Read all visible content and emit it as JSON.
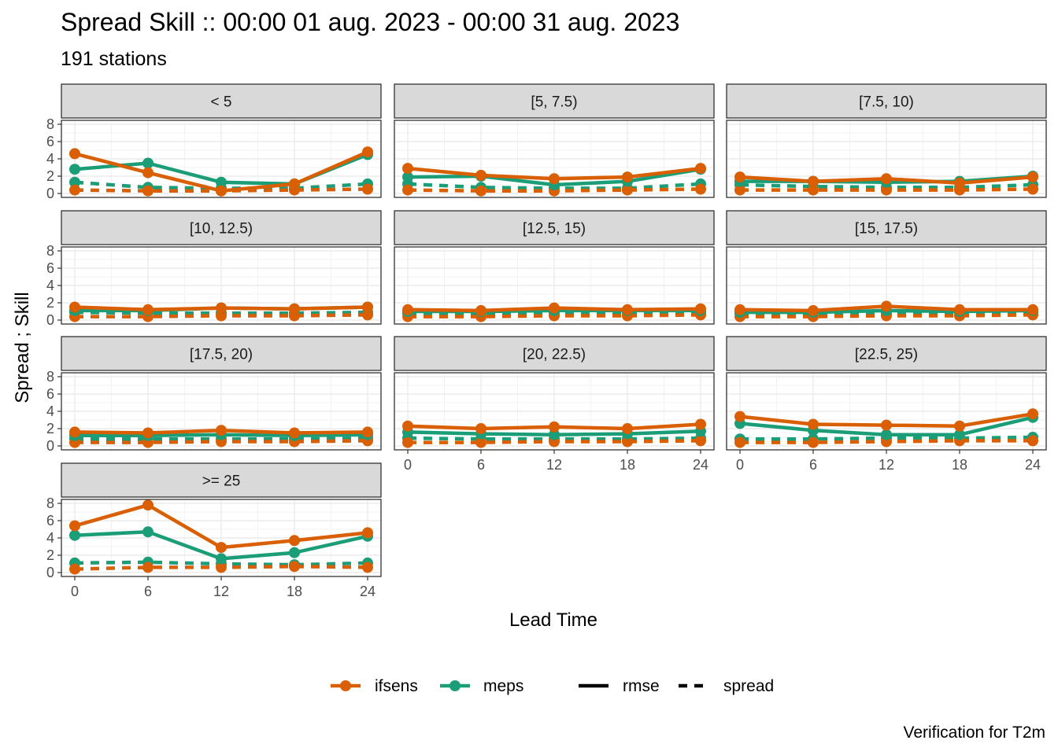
{
  "title": "Spread Skill :: 00:00 01 aug. 2023 - 00:00 31 aug. 2023",
  "subtitle": "191 stations",
  "caption": "Verification for T2m",
  "colors": {
    "ifsens": "#D95F02",
    "meps": "#1B9E77",
    "strip_bg": "#D9D9D9",
    "grid": "#EBEBEB",
    "border": "#333333"
  },
  "chart_data": {
    "type": "line",
    "facet_by": "wind speed",
    "xlabel": "Lead Time",
    "ylabel": "Spread ; Skill",
    "x": [
      0,
      6,
      12,
      18,
      24
    ],
    "xticks": [
      "0",
      "6",
      "12",
      "18",
      "24"
    ],
    "yticks": [
      "0",
      "2",
      "4",
      "6",
      "8"
    ],
    "ylim": [
      0,
      8
    ],
    "xlim": [
      0,
      24
    ],
    "grid": true,
    "legend_position": "bottom",
    "legend": {
      "models": [
        "ifsens",
        "meps"
      ],
      "metrics": [
        {
          "name": "rmse",
          "linetype": "solid"
        },
        {
          "name": "spread",
          "linetype": "dashed"
        }
      ]
    },
    "panels": [
      {
        "label": "< 5",
        "series": [
          {
            "model": "ifsens",
            "metric": "rmse",
            "values": [
              4.6,
              2.4,
              0.3,
              1.1,
              4.8
            ]
          },
          {
            "model": "meps",
            "metric": "rmse",
            "values": [
              2.8,
              3.5,
              1.3,
              1.1,
              4.5
            ]
          },
          {
            "model": "ifsens",
            "metric": "spread",
            "values": [
              0.4,
              0.3,
              0.3,
              0.4,
              0.5
            ]
          },
          {
            "model": "meps",
            "metric": "spread",
            "values": [
              1.3,
              0.7,
              0.6,
              0.6,
              1.1
            ]
          }
        ]
      },
      {
        "label": "[5, 7.5)",
        "series": [
          {
            "model": "ifsens",
            "metric": "rmse",
            "values": [
              2.9,
              2.1,
              1.7,
              1.9,
              2.9
            ]
          },
          {
            "model": "meps",
            "metric": "rmse",
            "values": [
              1.9,
              2.0,
              1.0,
              1.4,
              2.8
            ]
          },
          {
            "model": "ifsens",
            "metric": "spread",
            "values": [
              0.4,
              0.3,
              0.3,
              0.4,
              0.5
            ]
          },
          {
            "model": "meps",
            "metric": "spread",
            "values": [
              1.1,
              0.7,
              0.6,
              0.6,
              1.1
            ]
          }
        ]
      },
      {
        "label": "[7.5, 10)",
        "series": [
          {
            "model": "ifsens",
            "metric": "rmse",
            "values": [
              1.9,
              1.4,
              1.7,
              1.2,
              1.9
            ]
          },
          {
            "model": "meps",
            "metric": "rmse",
            "values": [
              1.4,
              1.4,
              1.3,
              1.4,
              2.0
            ]
          },
          {
            "model": "ifsens",
            "metric": "spread",
            "values": [
              0.4,
              0.4,
              0.4,
              0.4,
              0.5
            ]
          },
          {
            "model": "meps",
            "metric": "spread",
            "values": [
              1.0,
              0.8,
              0.7,
              0.7,
              1.0
            ]
          }
        ]
      },
      {
        "label": "[10, 12.5)",
        "series": [
          {
            "model": "ifsens",
            "metric": "rmse",
            "values": [
              1.5,
              1.2,
              1.4,
              1.3,
              1.5
            ]
          },
          {
            "model": "meps",
            "metric": "rmse",
            "values": [
              1.1,
              1.1,
              1.4,
              1.3,
              1.5
            ]
          },
          {
            "model": "ifsens",
            "metric": "spread",
            "values": [
              0.4,
              0.4,
              0.5,
              0.5,
              0.6
            ]
          },
          {
            "model": "meps",
            "metric": "spread",
            "values": [
              0.9,
              0.8,
              0.8,
              0.8,
              0.9
            ]
          }
        ]
      },
      {
        "label": "[12.5, 15)",
        "series": [
          {
            "model": "ifsens",
            "metric": "rmse",
            "values": [
              1.2,
              1.1,
              1.4,
              1.2,
              1.3
            ]
          },
          {
            "model": "meps",
            "metric": "rmse",
            "values": [
              1.0,
              1.0,
              1.1,
              1.1,
              1.1
            ]
          },
          {
            "model": "ifsens",
            "metric": "spread",
            "values": [
              0.4,
              0.4,
              0.5,
              0.5,
              0.6
            ]
          },
          {
            "model": "meps",
            "metric": "spread",
            "values": [
              0.8,
              0.8,
              0.8,
              0.8,
              0.9
            ]
          }
        ]
      },
      {
        "label": "[15, 17.5)",
        "series": [
          {
            "model": "ifsens",
            "metric": "rmse",
            "values": [
              1.2,
              1.1,
              1.6,
              1.2,
              1.2
            ]
          },
          {
            "model": "meps",
            "metric": "rmse",
            "values": [
              0.9,
              0.9,
              1.1,
              1.0,
              1.1
            ]
          },
          {
            "model": "ifsens",
            "metric": "spread",
            "values": [
              0.4,
              0.4,
              0.5,
              0.5,
              0.6
            ]
          },
          {
            "model": "meps",
            "metric": "spread",
            "values": [
              0.8,
              0.8,
              0.8,
              0.8,
              0.9
            ]
          }
        ]
      },
      {
        "label": "[17.5, 20)",
        "series": [
          {
            "model": "ifsens",
            "metric": "rmse",
            "values": [
              1.6,
              1.5,
              1.8,
              1.5,
              1.6
            ]
          },
          {
            "model": "meps",
            "metric": "rmse",
            "values": [
              1.2,
              1.2,
              1.3,
              1.2,
              1.3
            ]
          },
          {
            "model": "ifsens",
            "metric": "spread",
            "values": [
              0.4,
              0.4,
              0.5,
              0.5,
              0.6
            ]
          },
          {
            "model": "meps",
            "metric": "spread",
            "values": [
              0.8,
              0.8,
              0.8,
              0.8,
              0.9
            ]
          }
        ]
      },
      {
        "label": "[20, 22.5)",
        "series": [
          {
            "model": "ifsens",
            "metric": "rmse",
            "values": [
              2.3,
              2.0,
              2.2,
              2.0,
              2.5
            ]
          },
          {
            "model": "meps",
            "metric": "rmse",
            "values": [
              1.6,
              1.4,
              1.3,
              1.4,
              1.7
            ]
          },
          {
            "model": "ifsens",
            "metric": "spread",
            "values": [
              0.4,
              0.4,
              0.5,
              0.5,
              0.6
            ]
          },
          {
            "model": "meps",
            "metric": "spread",
            "values": [
              0.9,
              0.8,
              0.8,
              0.8,
              0.9
            ]
          }
        ]
      },
      {
        "label": "[22.5, 25)",
        "series": [
          {
            "model": "ifsens",
            "metric": "rmse",
            "values": [
              3.4,
              2.5,
              2.4,
              2.3,
              3.7
            ]
          },
          {
            "model": "meps",
            "metric": "rmse",
            "values": [
              2.6,
              1.8,
              1.3,
              1.3,
              3.3
            ]
          },
          {
            "model": "ifsens",
            "metric": "spread",
            "values": [
              0.4,
              0.4,
              0.5,
              0.6,
              0.6
            ]
          },
          {
            "model": "meps",
            "metric": "spread",
            "values": [
              0.8,
              0.8,
              0.9,
              0.9,
              1.0
            ]
          }
        ]
      },
      {
        "label": ">= 25",
        "series": [
          {
            "model": "ifsens",
            "metric": "rmse",
            "values": [
              5.4,
              7.8,
              2.9,
              3.7,
              4.6
            ]
          },
          {
            "model": "meps",
            "metric": "rmse",
            "values": [
              4.3,
              4.7,
              1.6,
              2.3,
              4.2
            ]
          },
          {
            "model": "ifsens",
            "metric": "spread",
            "values": [
              0.4,
              0.6,
              0.6,
              0.7,
              0.6
            ]
          },
          {
            "model": "meps",
            "metric": "spread",
            "values": [
              1.1,
              1.2,
              1.0,
              0.9,
              1.1
            ]
          }
        ]
      }
    ]
  }
}
